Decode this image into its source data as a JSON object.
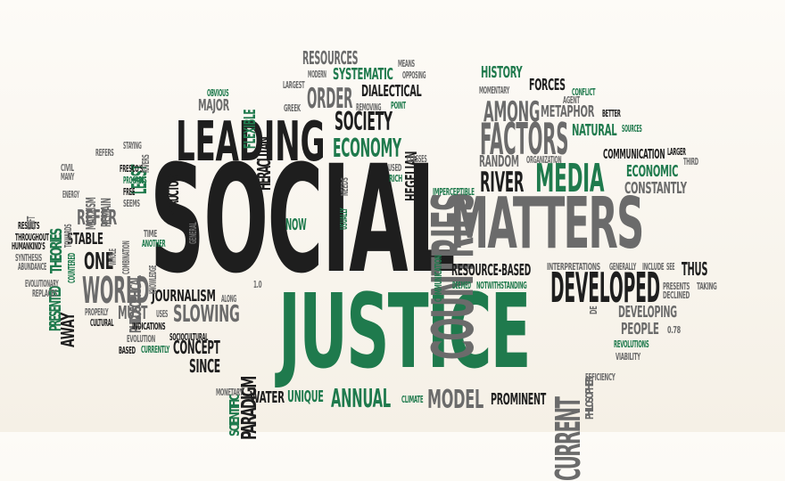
{
  "palette": {
    "dark": "#1e1e1e",
    "gray": "#6b6b6b",
    "green": "#1f7a4d",
    "background": "#f8f4ec"
  },
  "words": [
    {
      "text": "SOCIAL",
      "color": "dark"
    },
    {
      "text": "JUSTICE",
      "color": "green"
    },
    {
      "text": "MATTERS",
      "color": "gray"
    },
    {
      "text": "LEADING",
      "color": "dark"
    },
    {
      "text": "COUNTRIES",
      "color": "gray"
    },
    {
      "text": "FACTORS",
      "color": "gray"
    },
    {
      "text": "DEVELOPED",
      "color": "dark"
    },
    {
      "text": "MEDIA",
      "color": "green"
    },
    {
      "text": "WORLD",
      "color": "gray"
    },
    {
      "text": "CURRENT",
      "color": "gray"
    },
    {
      "text": "RIVER",
      "color": "dark"
    },
    {
      "text": "AMONG",
      "color": "gray"
    },
    {
      "text": "ECONOMY",
      "color": "green"
    },
    {
      "text": "SOCIETY",
      "color": "dark"
    },
    {
      "text": "ORDER",
      "color": "gray"
    },
    {
      "text": "RESOURCES",
      "color": "gray"
    },
    {
      "text": "SYSTEMATIC",
      "color": "green"
    },
    {
      "text": "HISTORY",
      "color": "green"
    },
    {
      "text": "FORCES",
      "color": "dark"
    },
    {
      "text": "METAPHOR",
      "color": "gray"
    },
    {
      "text": "NATURAL",
      "color": "green"
    },
    {
      "text": "DIALECTICAL",
      "color": "dark"
    },
    {
      "text": "HEGELIAN",
      "color": "dark"
    },
    {
      "text": "HERACLITAN",
      "color": "dark"
    },
    {
      "text": "FLEXIBLE",
      "color": "green"
    },
    {
      "text": "MAJOR",
      "color": "gray"
    },
    {
      "text": "STRUCTURE",
      "color": "dark"
    },
    {
      "text": "LEAST",
      "color": "green"
    },
    {
      "text": "REFER",
      "color": "gray"
    },
    {
      "text": "STABLE",
      "color": "dark"
    },
    {
      "text": "ONE",
      "color": "dark"
    },
    {
      "text": "MARXISM",
      "color": "gray"
    },
    {
      "text": "REMAIN",
      "color": "gray"
    },
    {
      "text": "PHILOSOPHICAL",
      "color": "gray"
    },
    {
      "text": "THEORIES",
      "color": "green"
    },
    {
      "text": "PRESENTED",
      "color": "green"
    },
    {
      "text": "AWAY",
      "color": "dark"
    },
    {
      "text": "MUST",
      "color": "gray"
    },
    {
      "text": "JOURNALISM",
      "color": "dark"
    },
    {
      "text": "SLOWING",
      "color": "gray"
    },
    {
      "text": "PARADIGM",
      "color": "dark"
    },
    {
      "text": "CONCEPT",
      "color": "dark"
    },
    {
      "text": "SINCE",
      "color": "dark"
    },
    {
      "text": "SCIENTIFIC",
      "color": "green"
    },
    {
      "text": "WATER",
      "color": "dark"
    },
    {
      "text": "UNIQUE",
      "color": "green"
    },
    {
      "text": "ANNUAL",
      "color": "green"
    },
    {
      "text": "MODEL",
      "color": "gray"
    },
    {
      "text": "PROMINENT",
      "color": "dark"
    },
    {
      "text": "PHILOSOPHER",
      "color": "gray"
    },
    {
      "text": "DEVELOPING",
      "color": "gray"
    },
    {
      "text": "PEOPLE",
      "color": "gray"
    },
    {
      "text": "THUS",
      "color": "dark"
    },
    {
      "text": "CONSTANTLY",
      "color": "gray"
    },
    {
      "text": "ECONOMIC",
      "color": "green"
    },
    {
      "text": "COMMUNICATION",
      "color": "dark"
    },
    {
      "text": "RANDOM",
      "color": "gray"
    },
    {
      "text": "RESOURCE-BASED",
      "color": "dark"
    },
    {
      "text": "NOW",
      "color": "green"
    },
    {
      "text": "ANOTHER",
      "color": "green"
    },
    {
      "text": "INTERPRETATIONS",
      "color": "gray"
    },
    {
      "text": "DEEMED",
      "color": "green"
    },
    {
      "text": "NOTWITHSTANDING",
      "color": "green"
    },
    {
      "text": "REVOLUTIONS",
      "color": "green"
    },
    {
      "text": "VIABILITY",
      "color": "gray"
    },
    {
      "text": "EFFICIENCY",
      "color": "gray"
    },
    {
      "text": "PRESENTS",
      "color": "gray"
    },
    {
      "text": "DECLINED",
      "color": "gray"
    },
    {
      "text": "TAKING",
      "color": "gray"
    },
    {
      "text": "INCLUDE",
      "color": "gray"
    },
    {
      "text": "GENERALLY",
      "color": "gray"
    },
    {
      "text": "SEE",
      "color": "gray"
    },
    {
      "text": "CLIMATE",
      "color": "green"
    },
    {
      "text": "MONETARY",
      "color": "gray"
    },
    {
      "text": "CURRENTLY",
      "color": "green"
    },
    {
      "text": "EVOLUTION",
      "color": "gray"
    },
    {
      "text": "BASED",
      "color": "dark"
    },
    {
      "text": "SOCIOCULTURAL",
      "color": "dark"
    },
    {
      "text": "INDICATIONS",
      "color": "dark"
    },
    {
      "text": "USES",
      "color": "gray"
    },
    {
      "text": "CULTURAL",
      "color": "dark"
    },
    {
      "text": "PROPERLY",
      "color": "gray"
    },
    {
      "text": "REPLACES",
      "color": "gray"
    },
    {
      "text": "EVOLUTIONARY",
      "color": "gray"
    },
    {
      "text": "ABUNDANCE",
      "color": "gray"
    },
    {
      "text": "SYNTHESIS",
      "color": "gray"
    },
    {
      "text": "HUMANKIND'S",
      "color": "dark"
    },
    {
      "text": "THROUGHOUT",
      "color": "dark"
    },
    {
      "text": "RESULTS",
      "color": "dark"
    },
    {
      "text": "SHIFT",
      "color": "gray"
    },
    {
      "text": "CIVIL",
      "color": "gray"
    },
    {
      "text": "MANY",
      "color": "gray"
    },
    {
      "text": "ENERGY",
      "color": "gray"
    },
    {
      "text": "TOWARDS",
      "color": "gray"
    },
    {
      "text": "COUNTERED",
      "color": "green"
    },
    {
      "text": "REFERS",
      "color": "gray"
    },
    {
      "text": "STAYING",
      "color": "gray"
    },
    {
      "text": "FRESCO'S",
      "color": "dark"
    },
    {
      "text": "PROGRESS",
      "color": "green"
    },
    {
      "text": "FREE",
      "color": "dark"
    },
    {
      "text": "SEEMS",
      "color": "gray"
    },
    {
      "text": "COMBINATION",
      "color": "gray"
    },
    {
      "text": "WHOLE",
      "color": "gray"
    },
    {
      "text": "TIME",
      "color": "gray"
    },
    {
      "text": "KNOWLEDGE",
      "color": "gray"
    },
    {
      "text": "RIVERS",
      "color": "gray"
    },
    {
      "text": "GENERAL",
      "color": "gray"
    },
    {
      "text": "ALONG",
      "color": "gray"
    },
    {
      "text": "1.0",
      "color": "gray"
    },
    {
      "text": "OBVIOUS",
      "color": "green"
    },
    {
      "text": "LARGEST",
      "color": "gray"
    },
    {
      "text": "GREEK",
      "color": "gray"
    },
    {
      "text": "MODERN",
      "color": "gray"
    },
    {
      "text": "MEANS",
      "color": "gray"
    },
    {
      "text": "OPPOSING",
      "color": "gray"
    },
    {
      "text": "REMOVING",
      "color": "gray"
    },
    {
      "text": "POINT",
      "color": "green"
    },
    {
      "text": "CLASSES",
      "color": "gray"
    },
    {
      "text": "USED",
      "color": "gray"
    },
    {
      "text": "RICH",
      "color": "green"
    },
    {
      "text": "NEEDS",
      "color": "gray"
    },
    {
      "text": "USUALLY",
      "color": "green"
    },
    {
      "text": "IMPERCEPTIBLE",
      "color": "green"
    },
    {
      "text": "COMMUNICATION",
      "color": "green"
    },
    {
      "text": "MOMENTARY",
      "color": "gray"
    },
    {
      "text": "CONFLICT",
      "color": "green"
    },
    {
      "text": "AGENT",
      "color": "gray"
    },
    {
      "text": "BETTER",
      "color": "dark"
    },
    {
      "text": "SOURCES",
      "color": "green"
    },
    {
      "text": "ORGANIZATION",
      "color": "gray"
    },
    {
      "text": "LARGER",
      "color": "dark"
    },
    {
      "text": "THIRD",
      "color": "gray"
    },
    {
      "text": "DE",
      "color": "gray"
    },
    {
      "text": "0.78",
      "color": "gray"
    }
  ]
}
